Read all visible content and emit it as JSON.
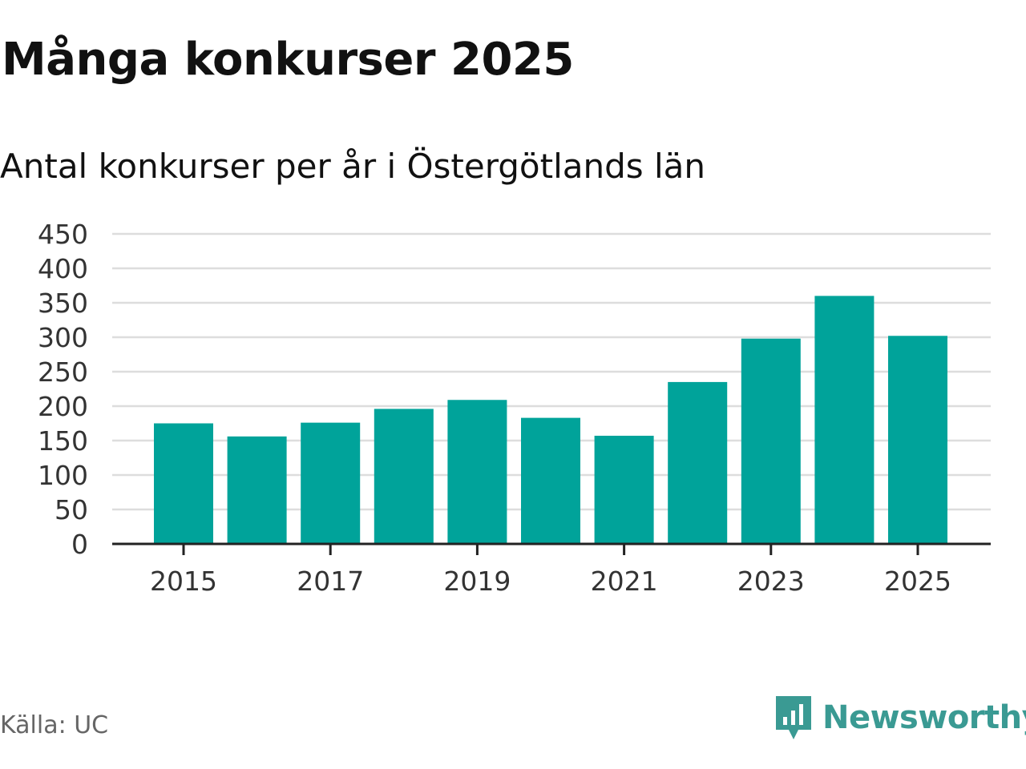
{
  "header": {
    "title": "Många konkurser 2025",
    "subtitle": "Antal konkurser per år i Östergötlands län"
  },
  "footer": {
    "source": "Källa: UC",
    "brand": "Newsworthy",
    "brand_icon": "newsworthy-logo-icon"
  },
  "colors": {
    "bar": "#00A39A",
    "brand": "#3A9A93",
    "grid": "#DDDDDD",
    "axis": "#222222"
  },
  "chart_data": {
    "type": "bar",
    "categories": [
      "2015",
      "2016",
      "2017",
      "2018",
      "2019",
      "2020",
      "2021",
      "2022",
      "2023",
      "2024",
      "2025"
    ],
    "values": [
      175,
      156,
      176,
      196,
      209,
      183,
      157,
      235,
      298,
      360,
      302
    ],
    "x_tick_labels": [
      "2015",
      "2017",
      "2019",
      "2021",
      "2023",
      "2025"
    ],
    "y_ticks": [
      0,
      50,
      100,
      150,
      200,
      250,
      300,
      350,
      400,
      450
    ],
    "ylim": [
      0,
      450
    ],
    "grid": true,
    "legend": false
  }
}
